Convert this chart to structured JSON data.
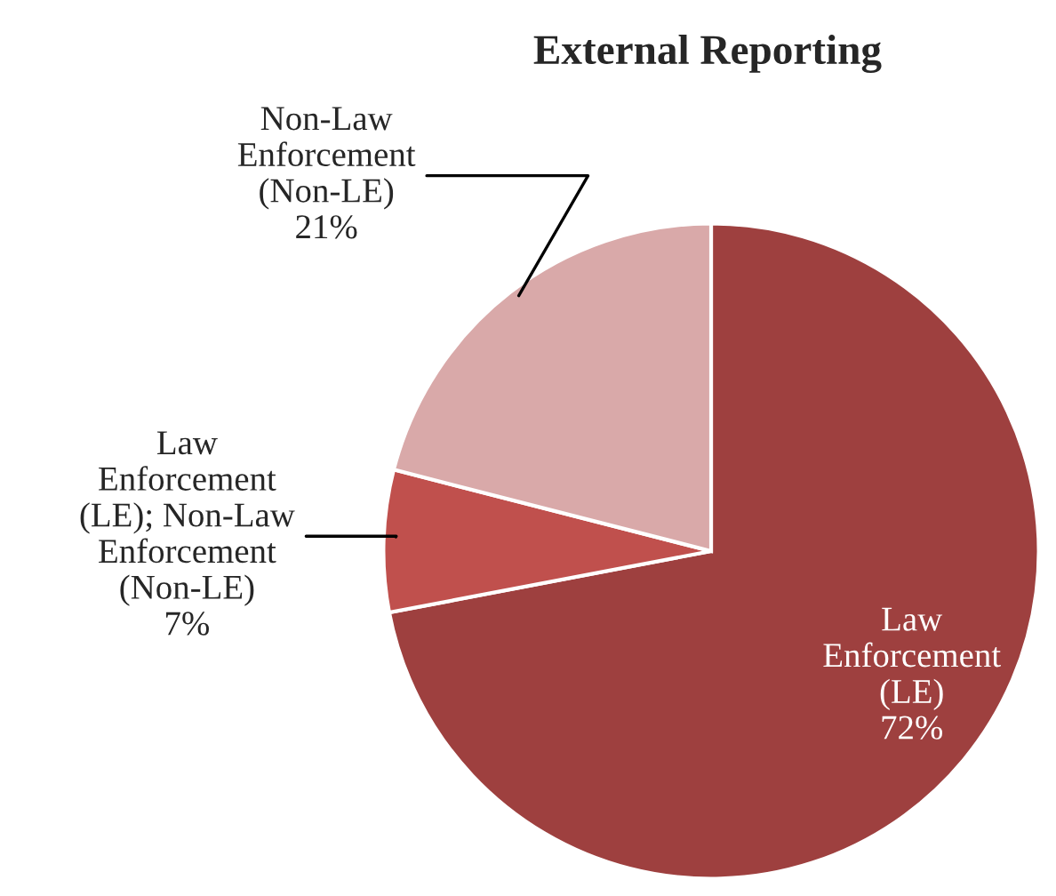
{
  "chart_data": {
    "type": "pie",
    "title": "External Reporting",
    "categories": [
      "Law\nEnforcement\n(LE)",
      "Law\nEnforcement\n(LE); Non-Law\nEnforcement\n(Non-LE)",
      "Non-Law\nEnforcement\n(Non-LE)"
    ],
    "values": [
      72,
      7,
      21
    ],
    "value_labels": [
      "72%",
      "7%",
      "21%"
    ],
    "colors": [
      "#9e403f",
      "#c0504d",
      "#d9a9a9"
    ]
  }
}
